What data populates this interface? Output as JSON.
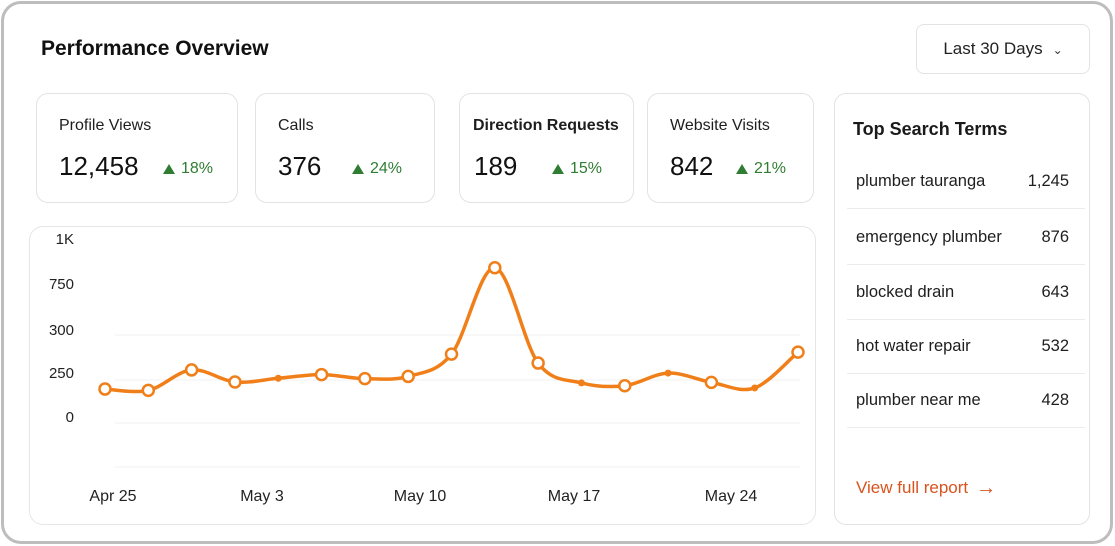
{
  "header": {
    "title": "Performance Overview",
    "date_range": "Last 30 Days",
    "date_range_icon": "chevron-down-icon"
  },
  "kpis": [
    {
      "label": "Profile Views",
      "value": "12,458",
      "delta": "18%",
      "trend": "up"
    },
    {
      "label": "Calls",
      "value": "376",
      "delta": "24%",
      "trend": "up"
    },
    {
      "label": "Direction Requests",
      "value": "189",
      "delta": "15%",
      "trend": "up"
    },
    {
      "label": "Website Visits",
      "value": "842",
      "delta": "21%",
      "trend": "up"
    }
  ],
  "colors": {
    "accent": "#f07f1a",
    "positive": "#2e7d32",
    "link": "#d9531e"
  },
  "chart_data": {
    "type": "line",
    "y_tick_labels": [
      "1K",
      "750",
      "300",
      "250",
      "0"
    ],
    "x_tick_labels": [
      "Apr 25",
      "May 3",
      "May 10",
      "May 17",
      "May 24"
    ],
    "grid": true,
    "series": [
      {
        "values": [
          232,
          225,
          335,
          270,
          290,
          310,
          288,
          300,
          420,
          885,
          372,
          265,
          250,
          318,
          268,
          238,
          431
        ]
      }
    ]
  },
  "top_search_terms": {
    "title": "Top Search Terms",
    "items": [
      {
        "term": "plumber tauranga",
        "count": "1,245"
      },
      {
        "term": "emergency plumber",
        "count": "876"
      },
      {
        "term": "blocked drain",
        "count": "643"
      },
      {
        "term": "hot water repair",
        "count": "532"
      },
      {
        "term": "plumber near me",
        "count": "428"
      }
    ],
    "link_label": "View full report",
    "link_icon": "arrow-right-icon"
  }
}
